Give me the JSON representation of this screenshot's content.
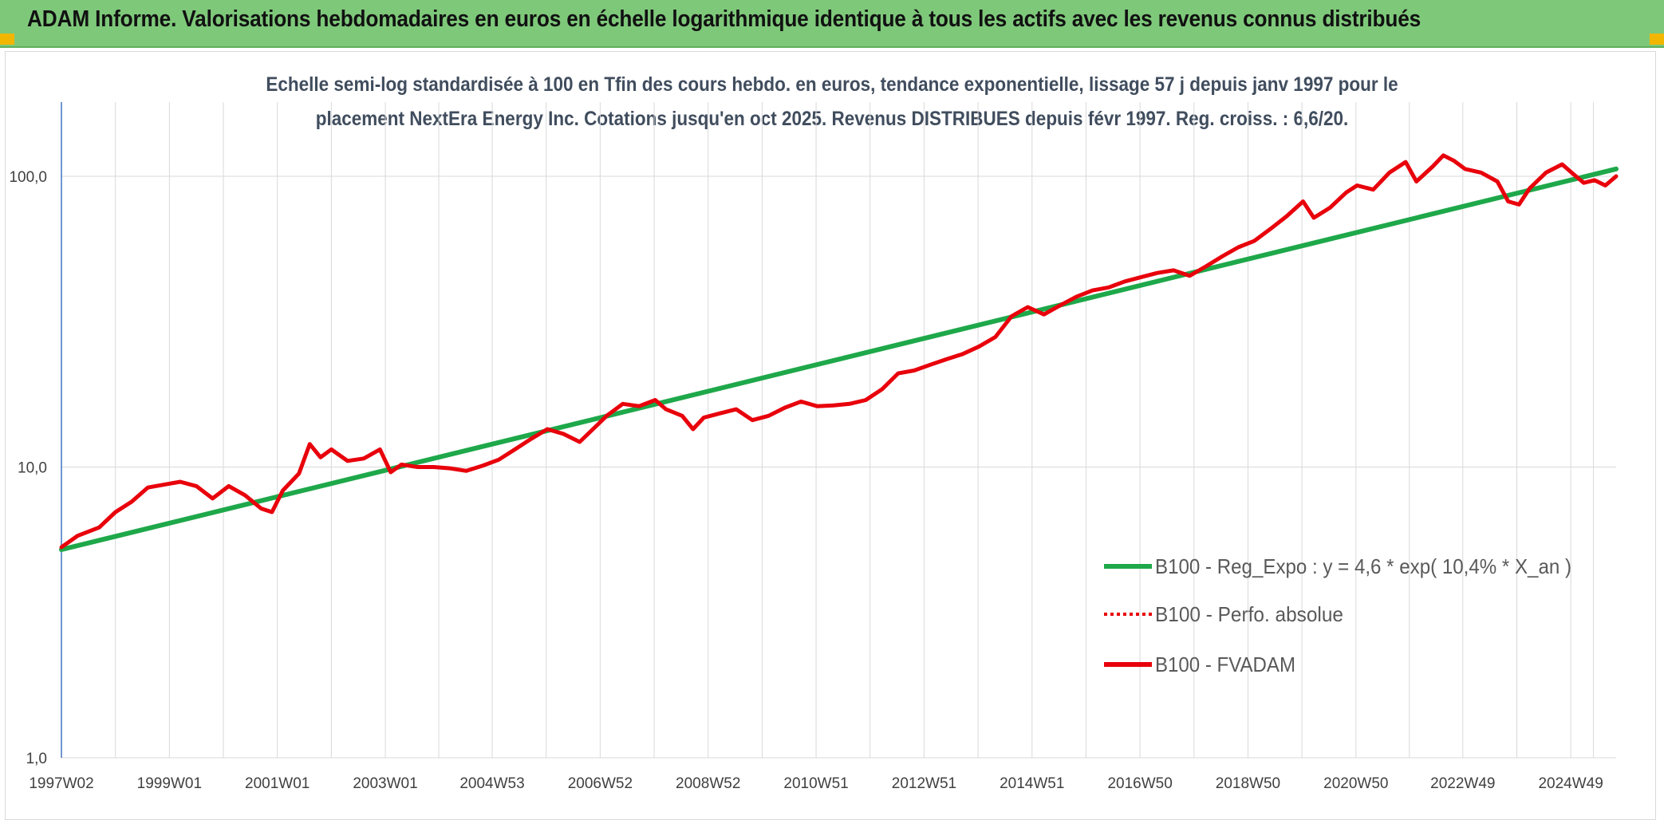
{
  "header": {
    "title": "ADAM Informe. Valorisations hebdomadaires en euros en échelle logarithmique identique à tous les actifs avec les revenus connus distribués"
  },
  "colors": {
    "header_bg": "#7ec87a",
    "corner_marks": "#f2b600",
    "regression_line": "#1ea84a",
    "fvadam_line": "#e8000b",
    "perf_line": "#e8000b",
    "grid": "#d9d9d9",
    "y_axis": "#4472c4"
  },
  "chart_data": {
    "type": "line",
    "title_lines": [
      "Echelle semi-log standardisée à 100 en Tfin des cours hebdo. en euros, tendance exponentielle, lissage 57 j depuis janv 1997 pour le",
      "placement NextEra Energy Inc. Cotations jusqu'en oct 2025. Revenus DISTRIBUES depuis févr 1997. Reg. croiss. : 6,6/20."
    ],
    "y_scale": "log",
    "ylim": [
      1,
      180
    ],
    "y_ticks": [
      {
        "value": 1,
        "label": "1,0"
      },
      {
        "value": 10,
        "label": "10,0"
      },
      {
        "value": 100,
        "label": "100,0"
      }
    ],
    "xlim": [
      1997.0,
      2025.8
    ],
    "x_ticks": [
      {
        "value": 1997.0,
        "label": "1997W02"
      },
      {
        "value": 1999.0,
        "label": "1999W01"
      },
      {
        "value": 2001.0,
        "label": "2001W01"
      },
      {
        "value": 2003.0,
        "label": "2003W01"
      },
      {
        "value": 2004.98,
        "label": "2004W53"
      },
      {
        "value": 2006.98,
        "label": "2006W52"
      },
      {
        "value": 2008.98,
        "label": "2008W52"
      },
      {
        "value": 2010.98,
        "label": "2010W51"
      },
      {
        "value": 2012.98,
        "label": "2012W51"
      },
      {
        "value": 2014.98,
        "label": "2014W51"
      },
      {
        "value": 2016.98,
        "label": "2016W50"
      },
      {
        "value": 2018.98,
        "label": "2018W50"
      },
      {
        "value": 2020.98,
        "label": "2020W50"
      },
      {
        "value": 2022.96,
        "label": "2022W49"
      },
      {
        "value": 2024.96,
        "label": "2024W49"
      }
    ],
    "grid": true,
    "legend_position": "bottom-right",
    "series": [
      {
        "name": "B100 - Reg_Expo : y = 4,6 * exp( 10,4% *  X_an )",
        "style": "solid",
        "points": [
          [
            1997.0,
            5.2
          ],
          [
            2025.8,
            106
          ]
        ]
      },
      {
        "name": "B100 - Perfo. absolue",
        "style": "dotted",
        "points": []
      },
      {
        "name": "B100 - FVADAM",
        "style": "solid",
        "points": [
          [
            1997.0,
            5.3
          ],
          [
            1997.3,
            5.8
          ],
          [
            1997.7,
            6.2
          ],
          [
            1998.0,
            7.0
          ],
          [
            1998.3,
            7.6
          ],
          [
            1998.6,
            8.5
          ],
          [
            1998.9,
            8.7
          ],
          [
            1999.2,
            8.9
          ],
          [
            1999.5,
            8.6
          ],
          [
            1999.8,
            7.8
          ],
          [
            2000.1,
            8.6
          ],
          [
            2000.4,
            8.0
          ],
          [
            2000.7,
            7.2
          ],
          [
            2000.9,
            7.0
          ],
          [
            2001.1,
            8.3
          ],
          [
            2001.4,
            9.5
          ],
          [
            2001.6,
            12.0
          ],
          [
            2001.8,
            10.8
          ],
          [
            2002.0,
            11.5
          ],
          [
            2002.3,
            10.5
          ],
          [
            2002.6,
            10.7
          ],
          [
            2002.9,
            11.5
          ],
          [
            2003.1,
            9.6
          ],
          [
            2003.3,
            10.2
          ],
          [
            2003.6,
            10.0
          ],
          [
            2003.9,
            10.0
          ],
          [
            2004.2,
            9.9
          ],
          [
            2004.5,
            9.7
          ],
          [
            2004.8,
            10.1
          ],
          [
            2005.1,
            10.6
          ],
          [
            2005.4,
            11.5
          ],
          [
            2005.7,
            12.5
          ],
          [
            2006.0,
            13.5
          ],
          [
            2006.3,
            13.0
          ],
          [
            2006.6,
            12.2
          ],
          [
            2006.9,
            13.8
          ],
          [
            2007.1,
            15.0
          ],
          [
            2007.4,
            16.5
          ],
          [
            2007.7,
            16.2
          ],
          [
            2008.0,
            17.0
          ],
          [
            2008.2,
            15.8
          ],
          [
            2008.5,
            15.0
          ],
          [
            2008.7,
            13.5
          ],
          [
            2008.9,
            14.8
          ],
          [
            2009.2,
            15.3
          ],
          [
            2009.5,
            15.8
          ],
          [
            2009.8,
            14.5
          ],
          [
            2010.1,
            15.0
          ],
          [
            2010.4,
            16.0
          ],
          [
            2010.7,
            16.8
          ],
          [
            2011.0,
            16.2
          ],
          [
            2011.3,
            16.3
          ],
          [
            2011.6,
            16.5
          ],
          [
            2011.9,
            17.0
          ],
          [
            2012.2,
            18.5
          ],
          [
            2012.5,
            21.0
          ],
          [
            2012.8,
            21.5
          ],
          [
            2013.1,
            22.5
          ],
          [
            2013.4,
            23.5
          ],
          [
            2013.7,
            24.5
          ],
          [
            2014.0,
            26.0
          ],
          [
            2014.3,
            28.0
          ],
          [
            2014.6,
            33.0
          ],
          [
            2014.9,
            35.5
          ],
          [
            2015.2,
            33.5
          ],
          [
            2015.5,
            36.0
          ],
          [
            2015.8,
            38.5
          ],
          [
            2016.1,
            40.5
          ],
          [
            2016.4,
            41.5
          ],
          [
            2016.7,
            43.5
          ],
          [
            2017.0,
            45.0
          ],
          [
            2017.3,
            46.5
          ],
          [
            2017.6,
            47.5
          ],
          [
            2017.9,
            45.5
          ],
          [
            2018.2,
            49.0
          ],
          [
            2018.5,
            53.0
          ],
          [
            2018.8,
            57.0
          ],
          [
            2019.1,
            60.0
          ],
          [
            2019.4,
            66.0
          ],
          [
            2019.7,
            73.0
          ],
          [
            2020.0,
            82.0
          ],
          [
            2020.2,
            72.0
          ],
          [
            2020.5,
            78.0
          ],
          [
            2020.8,
            88.0
          ],
          [
            2021.0,
            93.0
          ],
          [
            2021.3,
            90.0
          ],
          [
            2021.6,
            103.0
          ],
          [
            2021.9,
            112.0
          ],
          [
            2022.1,
            96.0
          ],
          [
            2022.4,
            108.0
          ],
          [
            2022.6,
            118.0
          ],
          [
            2022.8,
            113.0
          ],
          [
            2023.0,
            106.0
          ],
          [
            2023.3,
            103.0
          ],
          [
            2023.6,
            96.0
          ],
          [
            2023.8,
            82.0
          ],
          [
            2024.0,
            80.0
          ],
          [
            2024.2,
            91.0
          ],
          [
            2024.5,
            103.0
          ],
          [
            2024.8,
            110.0
          ],
          [
            2025.0,
            102.0
          ],
          [
            2025.2,
            95.0
          ],
          [
            2025.4,
            97.0
          ],
          [
            2025.6,
            93.0
          ],
          [
            2025.8,
            100.0
          ]
        ]
      }
    ]
  }
}
